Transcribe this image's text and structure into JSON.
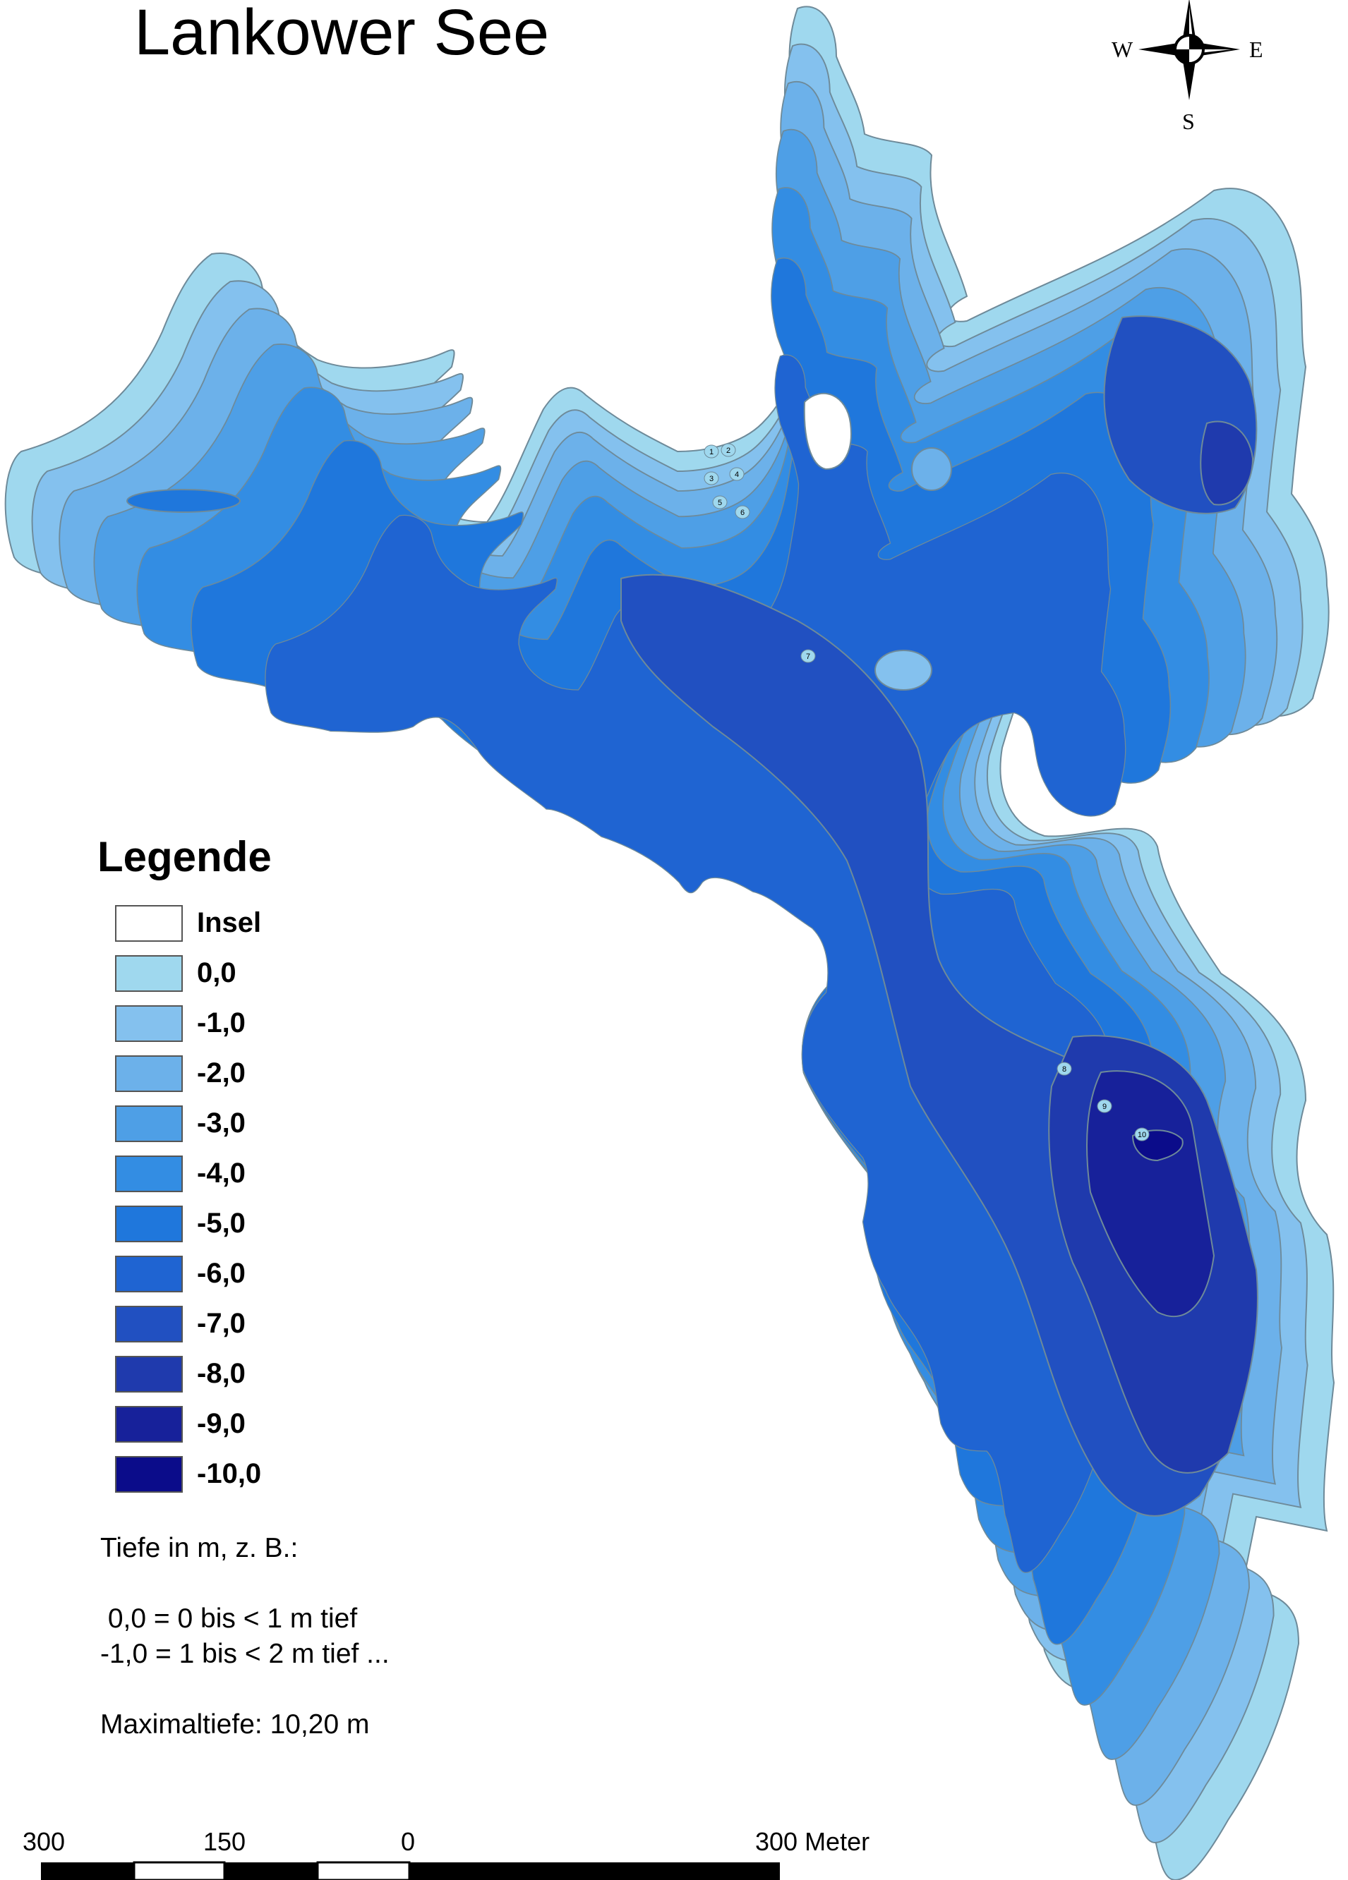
{
  "title": "Lankower See",
  "compass": {
    "west": "W",
    "east": "E",
    "south": "S"
  },
  "legend": {
    "title": "Legende",
    "items": [
      {
        "label": "Insel",
        "color": "#ffffff"
      },
      {
        "label": "0,0",
        "color": "#9fd8ee"
      },
      {
        "label": "-1,0",
        "color": "#84c1ee"
      },
      {
        "label": "-2,0",
        "color": "#6cb1ea"
      },
      {
        "label": "-3,0",
        "color": "#4e9fe6"
      },
      {
        "label": "-4,0",
        "color": "#338de3"
      },
      {
        "label": "-5,0",
        "color": "#1f77dc"
      },
      {
        "label": "-6,0",
        "color": "#1f64d2"
      },
      {
        "label": "-7,0",
        "color": "#2150c1"
      },
      {
        "label": "-8,0",
        "color": "#1f3aad"
      },
      {
        "label": "-9,0",
        "color": "#17219a"
      },
      {
        "label": "-10,0",
        "color": "#0b0c8a"
      }
    ]
  },
  "notes": {
    "line1": "Tiefe in m, z. B.:",
    "line2": " 0,0 = 0 bis < 1 m tief",
    "line3": "-1,0 = 1 bis < 2 m tief ...",
    "line4": "Maximaltiefe: 10,20 m"
  },
  "scale_bar": {
    "labels": [
      "300",
      "150",
      "0",
      "300 Meter"
    ]
  },
  "depth_markers": [
    "1",
    "2",
    "3",
    "4",
    "5",
    "6",
    "7",
    "8",
    "9",
    "10"
  ]
}
